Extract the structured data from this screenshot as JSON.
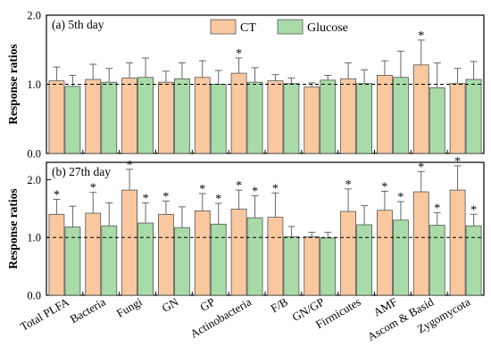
{
  "chart_data": {
    "type": "bar",
    "legend": {
      "placement": "top-center",
      "entries": [
        {
          "name": "CT",
          "color": "#F9C89F"
        },
        {
          "name": "Glucose",
          "color": "#A8DBA8"
        }
      ]
    },
    "categories": [
      "Total PLFA",
      "Bacteria",
      "Fungi",
      "GN",
      "GP",
      "Actinobacteria",
      "F/B",
      "GN/GP",
      "Firmicutes",
      "AMF",
      "Ascom & Basid",
      "Zygomycota"
    ],
    "reference_line": 1.0,
    "panels": [
      {
        "label": "(a) 5th day",
        "ylabel": "Response ratios",
        "ylim": [
          0.0,
          2.0
        ],
        "yticks": [
          "0.0",
          "1.0",
          "2.0"
        ],
        "series": [
          {
            "name": "CT",
            "color": "#F9C89F",
            "values": [
              1.05,
              1.07,
              1.09,
              1.03,
              1.1,
              1.16,
              1.05,
              0.96,
              1.08,
              1.13,
              1.28,
              1.01
            ],
            "errors": [
              0.2,
              0.22,
              0.22,
              0.16,
              0.24,
              0.22,
              0.09,
              0.06,
              0.23,
              0.21,
              0.36,
              0.22
            ],
            "significant": [
              false,
              false,
              false,
              false,
              false,
              true,
              false,
              false,
              false,
              false,
              true,
              false
            ]
          },
          {
            "name": "Glucose",
            "color": "#A8DBA8",
            "values": [
              0.97,
              1.03,
              1.1,
              1.08,
              1.0,
              1.03,
              1.01,
              1.06,
              1.01,
              1.1,
              0.95,
              1.07
            ],
            "errors": [
              0.16,
              0.2,
              0.28,
              0.23,
              0.2,
              0.21,
              0.08,
              0.07,
              0.2,
              0.38,
              0.36,
              0.26
            ],
            "significant": [
              false,
              false,
              false,
              false,
              false,
              false,
              false,
              false,
              false,
              false,
              false,
              false
            ]
          }
        ]
      },
      {
        "label": "(b) 27th day",
        "ylabel": "Response ratios",
        "ylim": [
          0.0,
          2.3
        ],
        "yticks": [
          "0.0",
          "1.0",
          "2.0"
        ],
        "series": [
          {
            "name": "CT",
            "color": "#F9C89F",
            "values": [
              1.4,
              1.42,
              1.82,
              1.4,
              1.46,
              1.49,
              1.35,
              1.01,
              1.45,
              1.47,
              1.79,
              1.82
            ],
            "errors": [
              0.26,
              0.36,
              0.36,
              0.23,
              0.3,
              0.33,
              0.42,
              0.08,
              0.39,
              0.33,
              0.35,
              0.42
            ],
            "significant": [
              true,
              true,
              true,
              true,
              true,
              true,
              true,
              false,
              true,
              true,
              true,
              true
            ]
          },
          {
            "name": "Glucose",
            "color": "#A8DBA8",
            "values": [
              1.18,
              1.2,
              1.25,
              1.17,
              1.23,
              1.34,
              1.01,
              0.99,
              1.22,
              1.3,
              1.21,
              1.2
            ],
            "errors": [
              0.36,
              0.4,
              0.35,
              0.36,
              0.36,
              0.38,
              0.18,
              0.1,
              0.33,
              0.32,
              0.22,
              0.2
            ],
            "significant": [
              false,
              false,
              true,
              false,
              true,
              true,
              false,
              false,
              false,
              true,
              true,
              true
            ]
          }
        ]
      }
    ]
  }
}
